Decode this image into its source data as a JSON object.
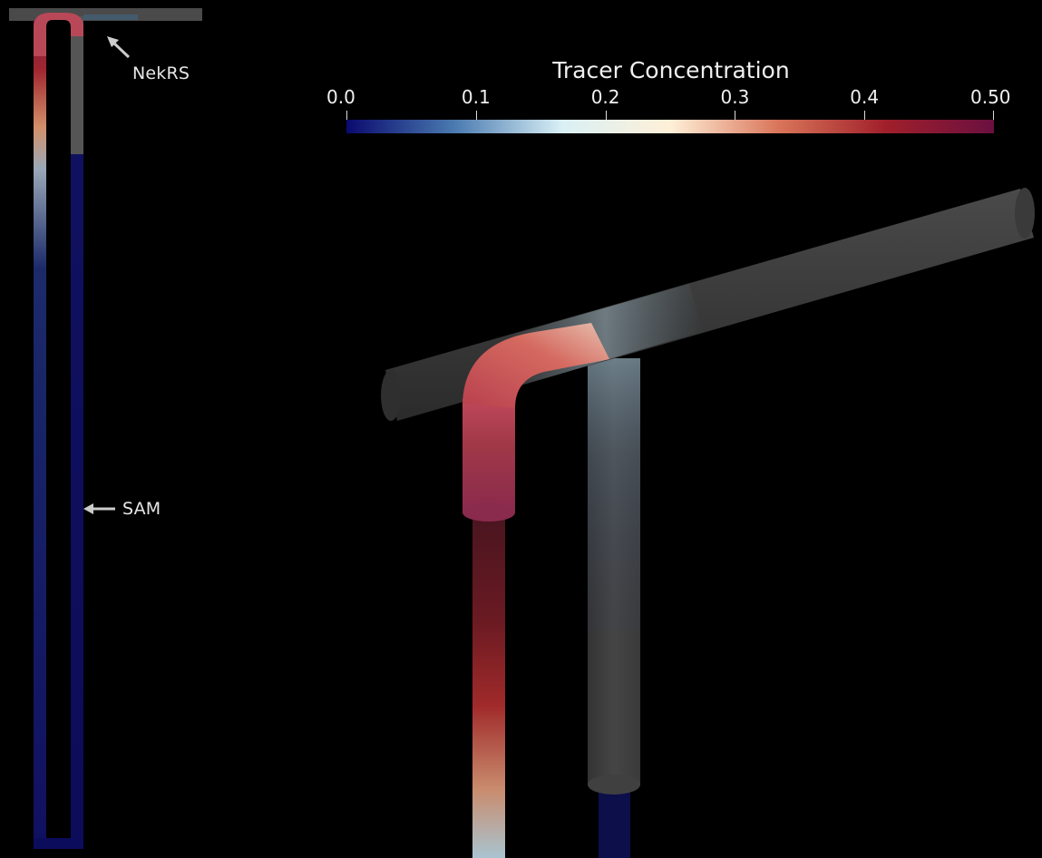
{
  "annotations": {
    "nekrs_label": "NekRS",
    "sam_label": "SAM"
  },
  "colorbar": {
    "title": "Tracer Concentration",
    "ticks": [
      "0.0",
      "0.1",
      "0.2",
      "0.3",
      "0.4",
      "0.50"
    ],
    "tick_values": [
      0.0,
      0.1,
      0.2,
      0.3,
      0.4,
      0.5
    ],
    "range": [
      0.0,
      0.5
    ],
    "colors": [
      "#0a0a6e",
      "#4a7ab0",
      "#d9f0f5",
      "#fff0d8",
      "#d9755a",
      "#a01f2a",
      "#6a1040"
    ]
  }
}
